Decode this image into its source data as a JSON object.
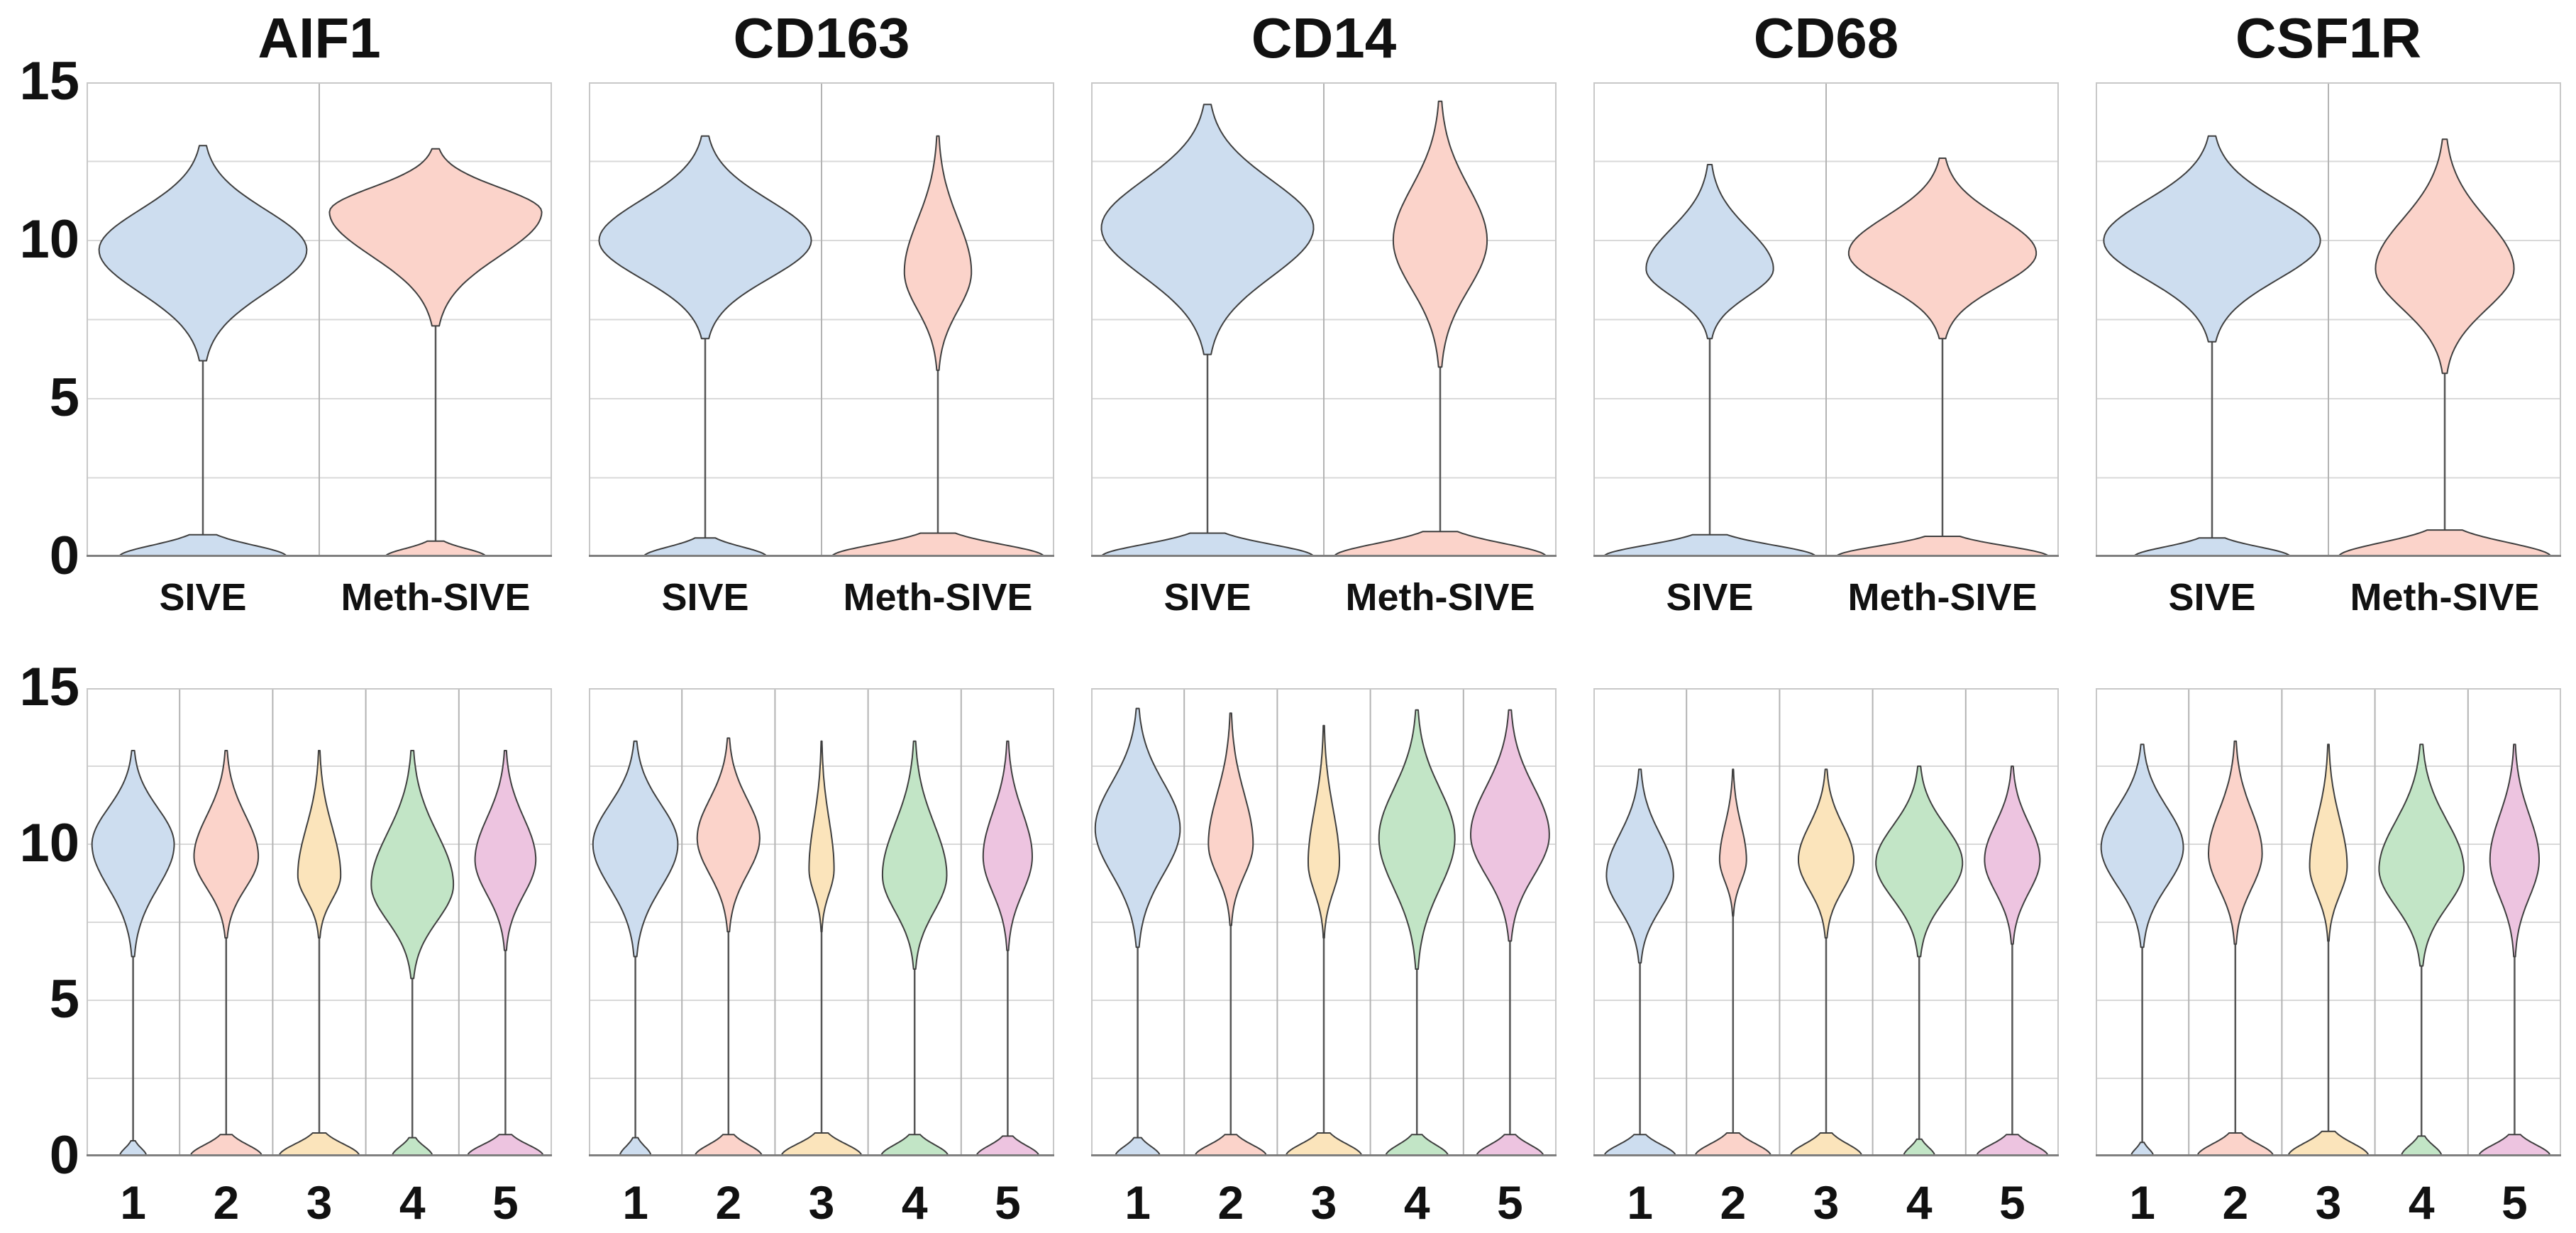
{
  "chart_data": {
    "type": "violin",
    "description": "Two rows of violin plots of gene expression (y: 0-15) for five myeloid marker genes; top row split by condition (SIVE vs Meth-SIVE), bottom row split by cluster 1-5. All violins are zero-inflated: a main lobe between ~6 and ~14 plus a small mound at 0 connected by a thin stem.",
    "genes": [
      "AIF1",
      "CD163",
      "CD14",
      "CD68",
      "CSF1R"
    ],
    "ylim": [
      0,
      15
    ],
    "y_ticks": [
      0,
      5,
      10,
      15
    ],
    "y_tick_labels": [
      "15",
      "10",
      "5",
      "0"
    ],
    "gridline_step": 2.5,
    "grid_on": true,
    "colors": {
      "blue": "#cdddef",
      "salmon": "#fbd3ca",
      "yellow": "#fbe4bb",
      "green": "#c2e5c6",
      "magenta": "#edc4e0",
      "outline": "#3f3f3f",
      "stem": "#555555",
      "grid": "#d9d9d9",
      "separator": "#b3b3b3",
      "border": "#c8c8c8",
      "axis": "#7f7f7f",
      "text": "#111111"
    },
    "violin_fields": "lo = bottom of main lobe, pk = y of maximum width (mode), hi = top of main lobe, w = max width as fraction of category cell, b0 = top of the zero mound, bw = zero-mound width fraction",
    "rows": [
      {
        "name": "by-condition",
        "categories": [
          "SIVE",
          "Meth-SIVE"
        ],
        "color_keys": [
          "blue",
          "salmon"
        ],
        "panels": [
          {
            "title": "AIF1",
            "violins": [
              {
                "lo": 6.2,
                "pk": 9.7,
                "hi": 13.0,
                "w": 0.93,
                "b0": 0.7,
                "bw": 0.75
              },
              {
                "lo": 7.3,
                "pk": 10.9,
                "hi": 12.9,
                "w": 0.95,
                "b0": 0.5,
                "bw": 0.45
              }
            ]
          },
          {
            "title": "CD163",
            "violins": [
              {
                "lo": 6.9,
                "pk": 10.0,
                "hi": 13.3,
                "w": 0.95,
                "b0": 0.6,
                "bw": 0.55
              },
              {
                "lo": 5.9,
                "pk": 9.0,
                "hi": 13.3,
                "w": 0.3,
                "b0": 0.75,
                "bw": 0.95
              }
            ]
          },
          {
            "title": "CD14",
            "violins": [
              {
                "lo": 6.4,
                "pk": 10.4,
                "hi": 14.3,
                "w": 0.95,
                "b0": 0.75,
                "bw": 0.95
              },
              {
                "lo": 6.0,
                "pk": 10.0,
                "hi": 14.4,
                "w": 0.42,
                "b0": 0.8,
                "bw": 0.95
              }
            ]
          },
          {
            "title": "CD68",
            "violins": [
              {
                "lo": 6.9,
                "pk": 9.1,
                "hi": 12.4,
                "w": 0.57,
                "b0": 0.7,
                "bw": 0.95
              },
              {
                "lo": 6.9,
                "pk": 9.6,
                "hi": 12.6,
                "w": 0.84,
                "b0": 0.65,
                "bw": 0.95
              }
            ]
          },
          {
            "title": "CSF1R",
            "violins": [
              {
                "lo": 6.8,
                "pk": 10.0,
                "hi": 13.3,
                "w": 0.97,
                "b0": 0.6,
                "bw": 0.7
              },
              {
                "lo": 5.8,
                "pk": 9.1,
                "hi": 13.2,
                "w": 0.62,
                "b0": 0.85,
                "bw": 0.95
              }
            ]
          }
        ]
      },
      {
        "name": "by-cluster",
        "categories": [
          "1",
          "2",
          "3",
          "4",
          "5"
        ],
        "color_keys": [
          "blue",
          "salmon",
          "yellow",
          "green",
          "magenta"
        ],
        "panels": [
          {
            "title": "AIF1",
            "violins": [
              {
                "lo": 6.4,
                "pk": 10.0,
                "hi": 13.0,
                "w": 0.92,
                "b0": 0.5,
                "bw": 0.3
              },
              {
                "lo": 7.0,
                "pk": 9.6,
                "hi": 13.0,
                "w": 0.72,
                "b0": 0.7,
                "bw": 0.8
              },
              {
                "lo": 7.0,
                "pk": 9.0,
                "hi": 13.0,
                "w": 0.48,
                "b0": 0.75,
                "bw": 0.9
              },
              {
                "lo": 5.7,
                "pk": 8.7,
                "hi": 13.0,
                "w": 0.92,
                "b0": 0.6,
                "bw": 0.45
              },
              {
                "lo": 6.6,
                "pk": 9.5,
                "hi": 13.0,
                "w": 0.68,
                "b0": 0.7,
                "bw": 0.85
              }
            ]
          },
          {
            "title": "CD163",
            "violins": [
              {
                "lo": 6.4,
                "pk": 10.0,
                "hi": 13.3,
                "w": 0.95,
                "b0": 0.6,
                "bw": 0.35
              },
              {
                "lo": 7.2,
                "pk": 10.2,
                "hi": 13.4,
                "w": 0.7,
                "b0": 0.7,
                "bw": 0.75
              },
              {
                "lo": 7.2,
                "pk": 9.2,
                "hi": 13.3,
                "w": 0.28,
                "b0": 0.75,
                "bw": 0.9
              },
              {
                "lo": 6.0,
                "pk": 9.0,
                "hi": 13.3,
                "w": 0.72,
                "b0": 0.7,
                "bw": 0.75
              },
              {
                "lo": 6.6,
                "pk": 9.6,
                "hi": 13.3,
                "w": 0.55,
                "b0": 0.65,
                "bw": 0.7
              }
            ]
          },
          {
            "title": "CD14",
            "violins": [
              {
                "lo": 6.7,
                "pk": 10.5,
                "hi": 14.35,
                "w": 0.95,
                "b0": 0.6,
                "bw": 0.5
              },
              {
                "lo": 7.4,
                "pk": 10.0,
                "hi": 14.2,
                "w": 0.5,
                "b0": 0.7,
                "bw": 0.8
              },
              {
                "lo": 7.0,
                "pk": 9.4,
                "hi": 13.8,
                "w": 0.35,
                "b0": 0.75,
                "bw": 0.85
              },
              {
                "lo": 6.0,
                "pk": 10.2,
                "hi": 14.3,
                "w": 0.85,
                "b0": 0.7,
                "bw": 0.7
              },
              {
                "lo": 6.9,
                "pk": 10.3,
                "hi": 14.3,
                "w": 0.88,
                "b0": 0.7,
                "bw": 0.75
              }
            ]
          },
          {
            "title": "CD68",
            "violins": [
              {
                "lo": 6.2,
                "pk": 9.0,
                "hi": 12.4,
                "w": 0.75,
                "b0": 0.7,
                "bw": 0.8
              },
              {
                "lo": 7.7,
                "pk": 9.5,
                "hi": 12.4,
                "w": 0.3,
                "b0": 0.75,
                "bw": 0.85
              },
              {
                "lo": 7.0,
                "pk": 9.5,
                "hi": 12.4,
                "w": 0.62,
                "b0": 0.75,
                "bw": 0.8
              },
              {
                "lo": 6.4,
                "pk": 9.4,
                "hi": 12.5,
                "w": 0.97,
                "b0": 0.55,
                "bw": 0.35
              },
              {
                "lo": 6.8,
                "pk": 9.5,
                "hi": 12.5,
                "w": 0.62,
                "b0": 0.7,
                "bw": 0.8
              }
            ]
          },
          {
            "title": "CSF1R",
            "violins": [
              {
                "lo": 6.7,
                "pk": 9.9,
                "hi": 13.2,
                "w": 0.92,
                "b0": 0.45,
                "bw": 0.25
              },
              {
                "lo": 6.8,
                "pk": 9.7,
                "hi": 13.3,
                "w": 0.6,
                "b0": 0.75,
                "bw": 0.85
              },
              {
                "lo": 6.9,
                "pk": 9.3,
                "hi": 13.2,
                "w": 0.42,
                "b0": 0.8,
                "bw": 0.9
              },
              {
                "lo": 6.1,
                "pk": 9.2,
                "hi": 13.2,
                "w": 0.95,
                "b0": 0.65,
                "bw": 0.45
              },
              {
                "lo": 6.4,
                "pk": 9.5,
                "hi": 13.2,
                "w": 0.55,
                "b0": 0.7,
                "bw": 0.8
              }
            ]
          }
        ]
      }
    ]
  }
}
